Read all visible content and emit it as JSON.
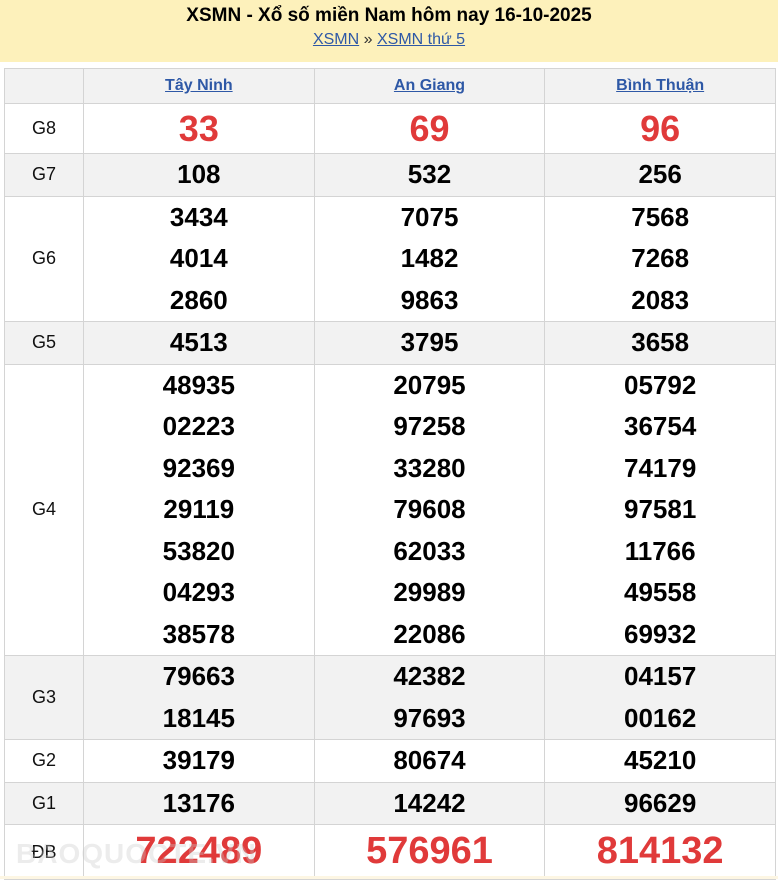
{
  "header": {
    "title": "XSMN - Xổ số miền Nam hôm nay 16-10-2025",
    "crumb1": "XSMN",
    "sep": "»",
    "crumb2": "XSMN thứ 5"
  },
  "provinces": [
    "Tây Ninh",
    "An Giang",
    "Bình Thuận"
  ],
  "rows": [
    {
      "label": "G8",
      "cols": [
        [
          "33"
        ],
        [
          "69"
        ],
        [
          "96"
        ]
      ]
    },
    {
      "label": "G7",
      "cols": [
        [
          "108"
        ],
        [
          "532"
        ],
        [
          "256"
        ]
      ]
    },
    {
      "label": "G6",
      "cols": [
        [
          "3434",
          "4014",
          "2860"
        ],
        [
          "7075",
          "1482",
          "9863"
        ],
        [
          "7568",
          "7268",
          "2083"
        ]
      ]
    },
    {
      "label": "G5",
      "cols": [
        [
          "4513"
        ],
        [
          "3795"
        ],
        [
          "3658"
        ]
      ]
    },
    {
      "label": "G4",
      "cols": [
        [
          "48935",
          "02223",
          "92369",
          "29119",
          "53820",
          "04293",
          "38578"
        ],
        [
          "20795",
          "97258",
          "33280",
          "79608",
          "62033",
          "29989",
          "22086"
        ],
        [
          "05792",
          "36754",
          "74179",
          "97581",
          "11766",
          "49558",
          "69932"
        ]
      ]
    },
    {
      "label": "G3",
      "cols": [
        [
          "79663",
          "18145"
        ],
        [
          "42382",
          "97693"
        ],
        [
          "04157",
          "00162"
        ]
      ]
    },
    {
      "label": "G2",
      "cols": [
        [
          "39179"
        ],
        [
          "80674"
        ],
        [
          "45210"
        ]
      ]
    },
    {
      "label": "G1",
      "cols": [
        [
          "13176"
        ],
        [
          "14242"
        ],
        [
          "96629"
        ]
      ]
    },
    {
      "label": "ĐB",
      "cols": [
        [
          "722489"
        ],
        [
          "576961"
        ],
        [
          "814132"
        ]
      ]
    }
  ],
  "watermark": "BAOQUOCTE.VN",
  "colors": {
    "prize_red": "#e03a3a",
    "link": "#2e58a6",
    "header_bg": "#fdf1bb"
  }
}
